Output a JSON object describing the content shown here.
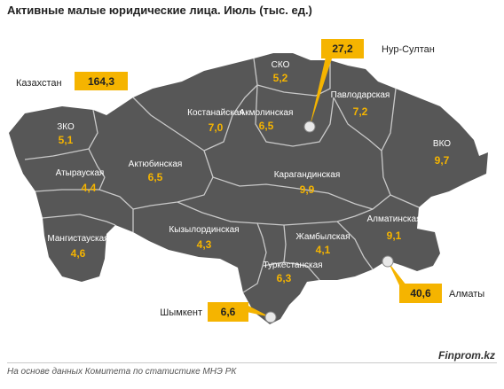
{
  "title": "Активные малые юридические лица. Июль (тыс. ед.)",
  "colors": {
    "region": "#575757",
    "border": "#c9c9c9",
    "value": "#f5b400",
    "highlight": "#f5b400"
  },
  "kazakhstan": {
    "label": "Казахстан",
    "value": "164,3"
  },
  "regions": [
    {
      "id": "sko",
      "name": "СКО",
      "value": "5,2"
    },
    {
      "id": "akmola",
      "name": "Акмолинская",
      "value": "6,5"
    },
    {
      "id": "pavlodar",
      "name": "Павлодарская",
      "value": "7,2"
    },
    {
      "id": "kostanay",
      "name": "Костанайская",
      "value": "7,0"
    },
    {
      "id": "zko",
      "name": "ЗКО",
      "value": "5,1"
    },
    {
      "id": "atyrau",
      "name": "Атырауская",
      "value": "4,4"
    },
    {
      "id": "aktobe",
      "name": "Актюбинская",
      "value": "6,5"
    },
    {
      "id": "karaganda",
      "name": "Карагандинская",
      "value": "9,9"
    },
    {
      "id": "vko",
      "name": "ВКО",
      "value": "9,7"
    },
    {
      "id": "mangistau",
      "name": "Мангистауская",
      "value": "4,6"
    },
    {
      "id": "kyzylorda",
      "name": "Кызылординская",
      "value": "4,3"
    },
    {
      "id": "zhambyl",
      "name": "Жамбылская",
      "value": "4,1"
    },
    {
      "id": "almaty_reg",
      "name": "Алматинская",
      "value": "9,1"
    },
    {
      "id": "turkestan",
      "name": "Туркестанская",
      "value": "6,3"
    }
  ],
  "cities": [
    {
      "id": "nursultan",
      "name": "Нур-Султан",
      "value": "27,2"
    },
    {
      "id": "almaty",
      "name": "Алматы",
      "value": "40,6"
    },
    {
      "id": "shymkent",
      "name": "Шымкент",
      "value": "6,6"
    }
  ],
  "source": "На основе данных  Комитета по статистике МНЭ РК",
  "brand": "Finprom.kz"
}
